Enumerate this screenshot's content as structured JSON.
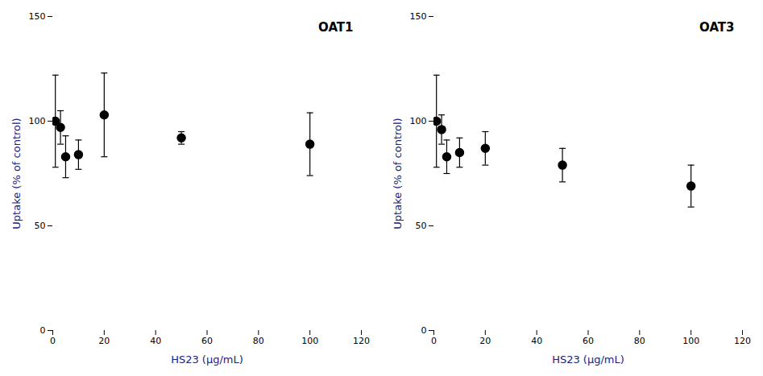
{
  "chart_data": [
    {
      "type": "scatter",
      "annotation": "OAT1",
      "x": [
        1,
        3,
        5,
        10,
        20,
        50,
        100
      ],
      "values": [
        100,
        97,
        83,
        84,
        103,
        92,
        89
      ],
      "yerr": [
        22,
        8,
        10,
        7,
        20,
        3,
        15
      ],
      "color": "#000000",
      "marker": "circle",
      "xlabel": "HS23 (μg/mL)",
      "ylabel": "Uptake (% of control)",
      "xlim": [
        0,
        120
      ],
      "ylim": [
        0,
        150
      ],
      "xticks": [
        0,
        20,
        40,
        60,
        80,
        100,
        120
      ],
      "yticks": [
        0,
        50,
        100,
        150
      ]
    },
    {
      "type": "scatter",
      "annotation": "OAT3",
      "x": [
        1,
        3,
        5,
        10,
        20,
        50,
        100
      ],
      "values": [
        100,
        96,
        83,
        85,
        87,
        79,
        69
      ],
      "yerr": [
        22,
        7,
        8,
        7,
        8,
        8,
        10
      ],
      "color": "#000000",
      "marker": "circle",
      "xlabel": "HS23 (μg/mL)",
      "ylabel": "Uptake (% of control)",
      "xlim": [
        0,
        120
      ],
      "ylim": [
        0,
        150
      ],
      "xticks": [
        0,
        20,
        40,
        60,
        80,
        100,
        120
      ],
      "yticks": [
        0,
        50,
        100,
        150
      ]
    }
  ]
}
